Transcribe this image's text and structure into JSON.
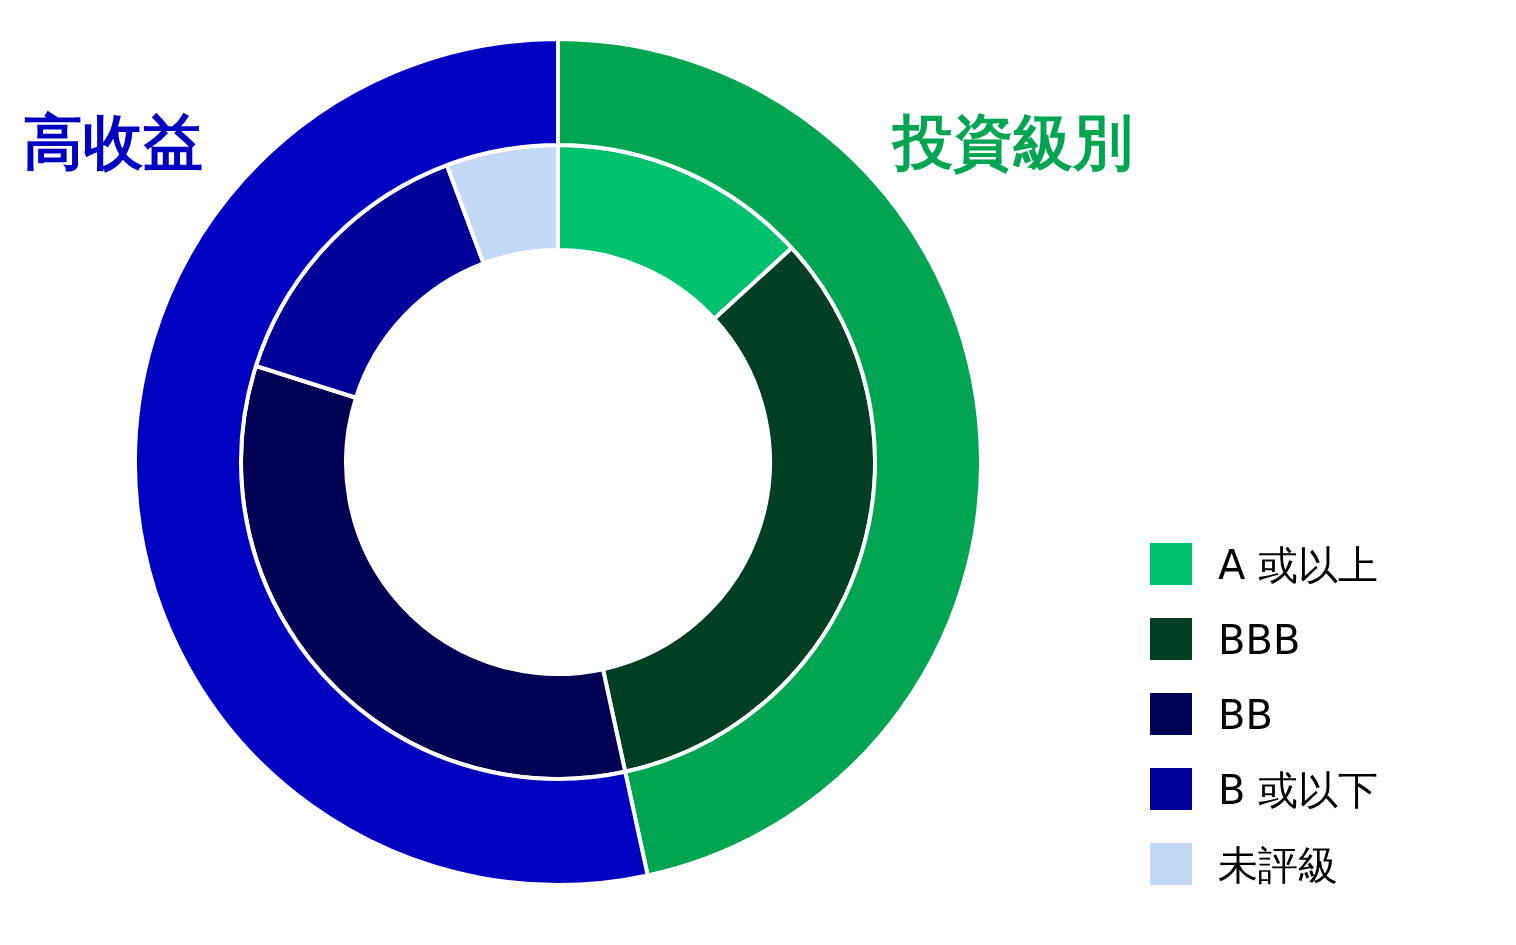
{
  "chart_data": [
    {
      "type": "donut",
      "categories": [
        "A 或以上",
        "BBB",
        "BB",
        "B 或以下",
        "未評級"
      ],
      "values": [
        13.2,
        33.4,
        33.3,
        14.4,
        5.7
      ],
      "colors": [
        "#00c16e",
        "#003f24",
        "#000055",
        "#000098",
        "#c3d9f5"
      ],
      "legend": "bottom right"
    },
    {
      "type": "donut",
      "categories": [
        "投資級別",
        "高收益"
      ],
      "values": [
        46.6,
        53.4
      ],
      "colors": [
        "#00a551",
        "#0000c0"
      ],
      "legend": false
    }
  ]
}
